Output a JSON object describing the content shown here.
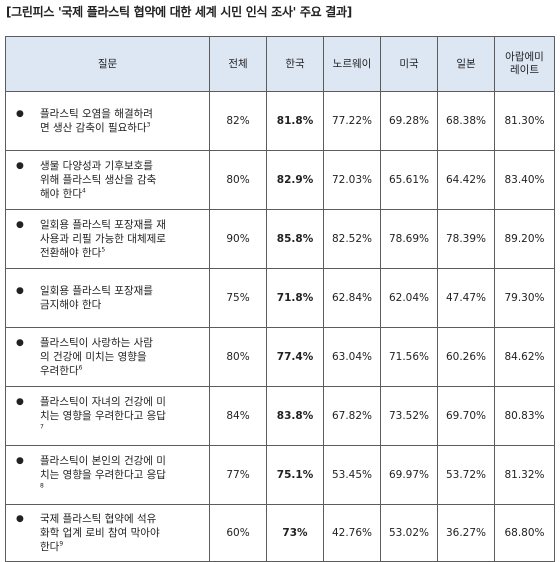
{
  "caption": "[그린피스 '국제 플라스틱 협약에 대한 세계 시민 인식 조사' 주요 결과]",
  "headers": [
    "질문",
    "전체",
    "한국",
    "노르웨이",
    "미국",
    "일본",
    "아랍에미레이트"
  ],
  "rows": [
    {
      "question": "플라스틱 오염을 해결하려면 생산 감축이 필요하다",
      "note": "3",
      "values": [
        "82%",
        "81.8%",
        "77.22%",
        "69.28%",
        "68.38%",
        "81.30%"
      ]
    },
    {
      "question": "생물 다양성과 기후보호를 위해 플라스틱 생산을 감축해야 한다",
      "note": "4",
      "values": [
        "80%",
        "82.9%",
        "72.03%",
        "65.61%",
        "64.42%",
        "83.40%"
      ]
    },
    {
      "question": "일회용 플라스틱 포장재를 재사용과 리필 가능한 대체제로 전환해야 한다",
      "note": "5",
      "values": [
        "90%",
        "85.8%",
        "82.52%",
        "78.69%",
        "78.39%",
        "89.20%"
      ]
    },
    {
      "question": "일회용 플라스틱 포장재를 금지해야 한다",
      "note": "",
      "values": [
        "75%",
        "71.8%",
        "62.84%",
        "62.04%",
        "47.47%",
        "79.30%"
      ]
    },
    {
      "question": "플라스틱이 사랑하는 사람의 건강에 미치는 영향을 우려한다",
      "note": "6",
      "values": [
        "80%",
        "77.4%",
        "63.04%",
        "71.56%",
        "60.26%",
        "84.62%"
      ]
    },
    {
      "question": "플라스틱이 자녀의 건강에 미치는 영향을 우려한다고 응답",
      "note": "7",
      "values": [
        "84%",
        "83.8%",
        "67.82%",
        "73.52%",
        "69.70%",
        "80.83%"
      ]
    },
    {
      "question": "플라스틱이 본인의 건강에 미치는 영향을 우려한다고 응답",
      "note": "8",
      "values": [
        "77%",
        "75.1%",
        "53.45%",
        "69.97%",
        "53.72%",
        "81.32%"
      ]
    },
    {
      "question": "국제 플라스틱 협약에 석유화학 업계 로비 참여 막아야 한다",
      "note": "9",
      "values": [
        "60%",
        "73%",
        "42.76%",
        "53.02%",
        "36.27%",
        "68.80%"
      ]
    }
  ]
}
